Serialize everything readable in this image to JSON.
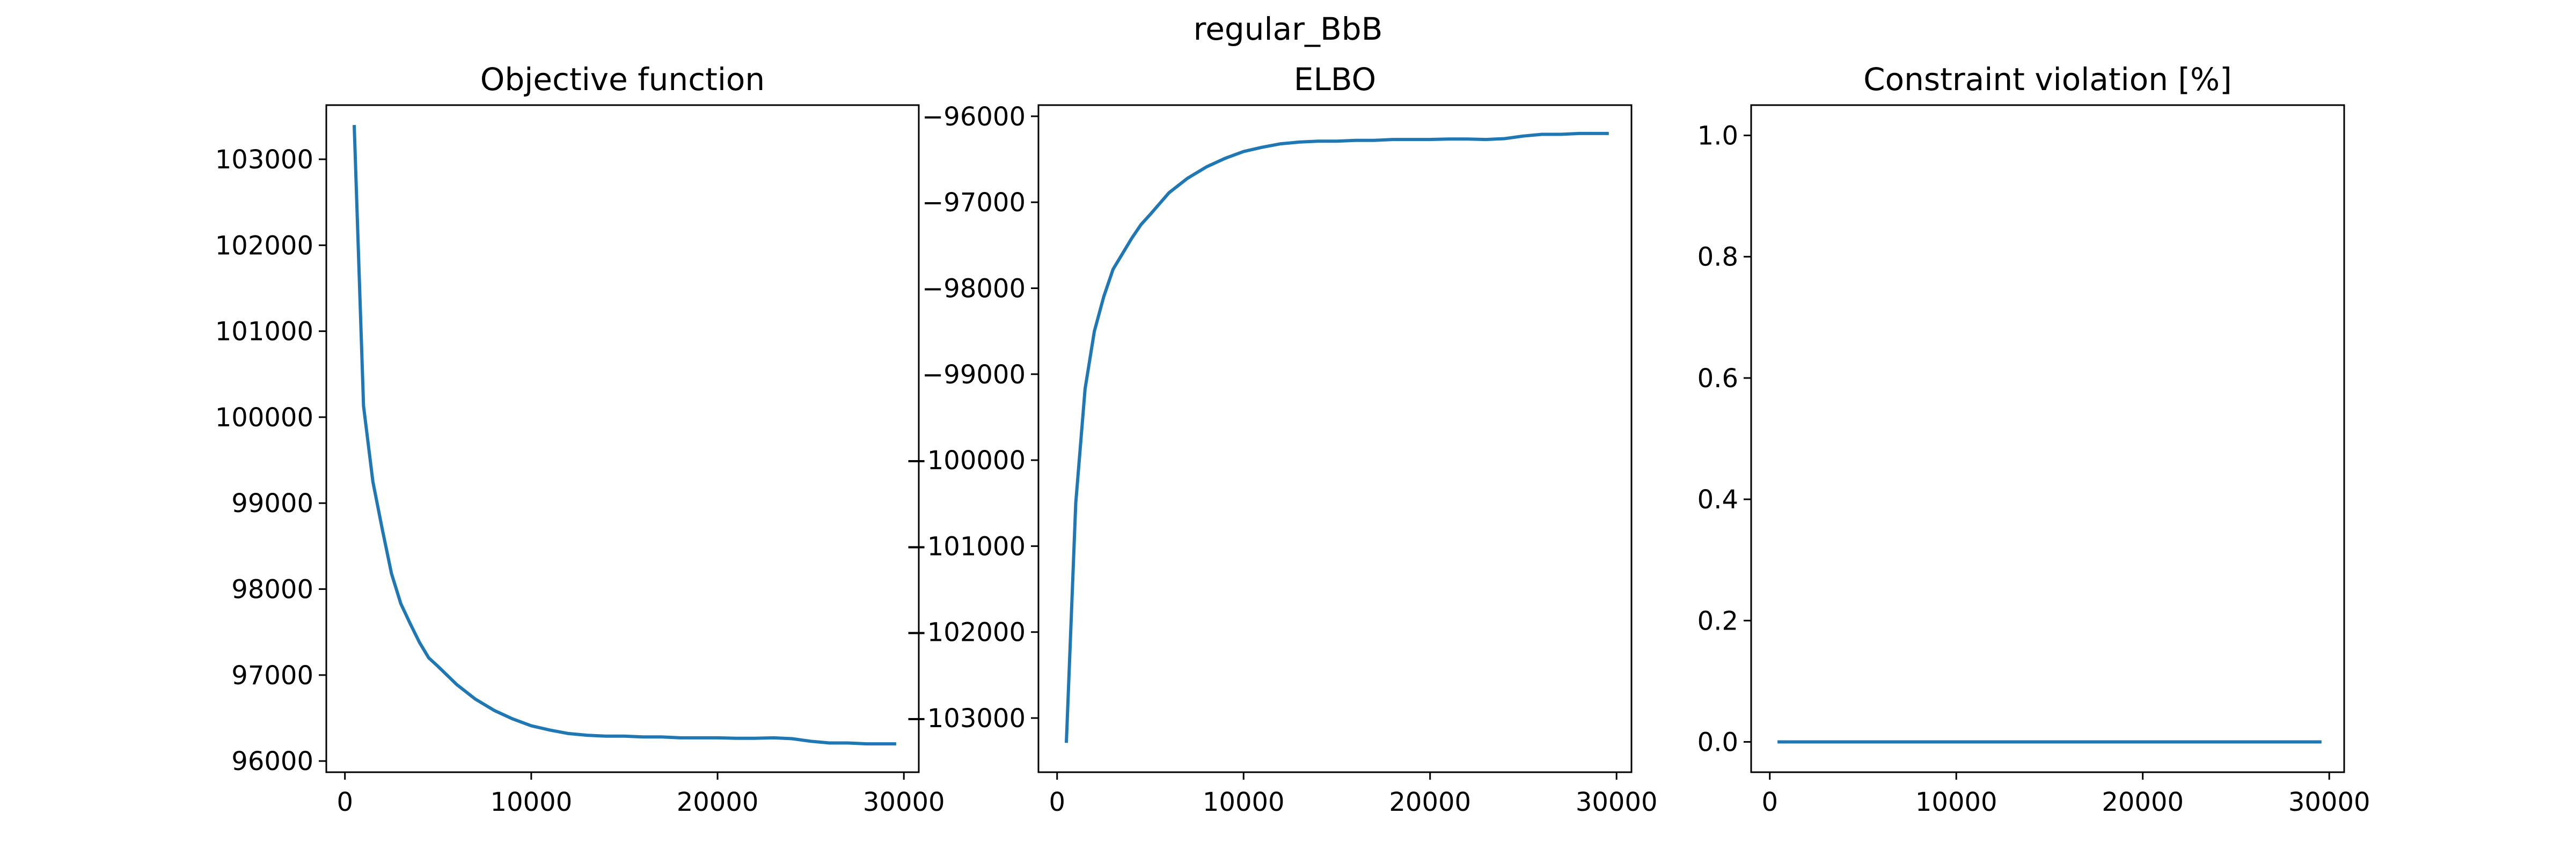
{
  "figure": {
    "suptitle": "regular_BbB"
  },
  "colors": {
    "line": "#1f77b4",
    "axes": "#000000",
    "background": "#ffffff"
  },
  "chart_data": [
    {
      "type": "line",
      "title": "Objective function",
      "xlabel": "",
      "ylabel": "",
      "xlim": [
        -1000,
        30800
      ],
      "ylim": [
        95870,
        103630
      ],
      "xticks": [
        0,
        10000,
        20000,
        30000
      ],
      "xtick_labels": [
        "0",
        "10000",
        "20000",
        "30000"
      ],
      "yticks": [
        96000,
        97000,
        98000,
        99000,
        100000,
        101000,
        102000,
        103000
      ],
      "ytick_labels": [
        "96000",
        "97000",
        "98000",
        "99000",
        "100000",
        "101000",
        "102000",
        "103000"
      ],
      "grid": false,
      "series": [
        {
          "x": [
            500,
            1000,
            1500,
            2000,
            2500,
            3000,
            3500,
            4000,
            4500,
            5000,
            6000,
            7000,
            8000,
            9000,
            10000,
            11000,
            12000,
            13000,
            14000,
            15000,
            16000,
            17000,
            18000,
            19000,
            20000,
            21000,
            22000,
            23000,
            24000,
            25000,
            26000,
            27000,
            28000,
            29000,
            29500
          ],
          "y": [
            103380,
            100130,
            99250,
            98700,
            98180,
            97830,
            97600,
            97380,
            97200,
            97100,
            96890,
            96720,
            96590,
            96490,
            96410,
            96360,
            96320,
            96300,
            96290,
            96290,
            96280,
            96280,
            96270,
            96270,
            96270,
            96265,
            96265,
            96270,
            96260,
            96230,
            96210,
            96210,
            96200,
            96200,
            96200
          ]
        }
      ]
    },
    {
      "type": "line",
      "title": "ELBO",
      "xlabel": "",
      "ylabel": "",
      "xlim": [
        -1000,
        30800
      ],
      "ylim": [
        -103630,
        -95870
      ],
      "xticks": [
        0,
        10000,
        20000,
        30000
      ],
      "xtick_labels": [
        "0",
        "10000",
        "20000",
        "30000"
      ],
      "yticks": [
        -103000,
        -102000,
        -101000,
        -100000,
        -99000,
        -98000,
        -97000,
        -96000
      ],
      "ytick_labels": [
        "−103000",
        "−102000",
        "−101000",
        "−100000",
        "−99000",
        "−98000",
        "−97000",
        "−96000"
      ],
      "grid": false,
      "series": [
        {
          "x": [
            500,
            1000,
            1500,
            2000,
            2500,
            3000,
            3500,
            4000,
            4500,
            5000,
            6000,
            7000,
            8000,
            9000,
            10000,
            11000,
            12000,
            13000,
            14000,
            15000,
            16000,
            17000,
            18000,
            19000,
            20000,
            21000,
            22000,
            23000,
            24000,
            25000,
            26000,
            27000,
            28000,
            29000,
            29500
          ],
          "y": [
            -103270,
            -100500,
            -99170,
            -98500,
            -98100,
            -97780,
            -97600,
            -97420,
            -97260,
            -97140,
            -96890,
            -96720,
            -96590,
            -96490,
            -96410,
            -96360,
            -96320,
            -96300,
            -96290,
            -96290,
            -96280,
            -96280,
            -96270,
            -96270,
            -96270,
            -96265,
            -96265,
            -96270,
            -96260,
            -96230,
            -96210,
            -96210,
            -96200,
            -96200,
            -96200
          ]
        }
      ]
    },
    {
      "type": "line",
      "title": "Constraint violation [%]",
      "xlabel": "",
      "ylabel": "",
      "xlim": [
        -1000,
        30800
      ],
      "ylim": [
        -0.05,
        1.05
      ],
      "xticks": [
        0,
        10000,
        20000,
        30000
      ],
      "xtick_labels": [
        "0",
        "10000",
        "20000",
        "30000"
      ],
      "yticks": [
        0.0,
        0.2,
        0.4,
        0.6,
        0.8,
        1.0
      ],
      "ytick_labels": [
        "0.0",
        "0.2",
        "0.4",
        "0.6",
        "0.8",
        "1.0"
      ],
      "grid": false,
      "series": [
        {
          "x": [
            500,
            29500
          ],
          "y": [
            0.0,
            0.0
          ]
        }
      ]
    }
  ]
}
